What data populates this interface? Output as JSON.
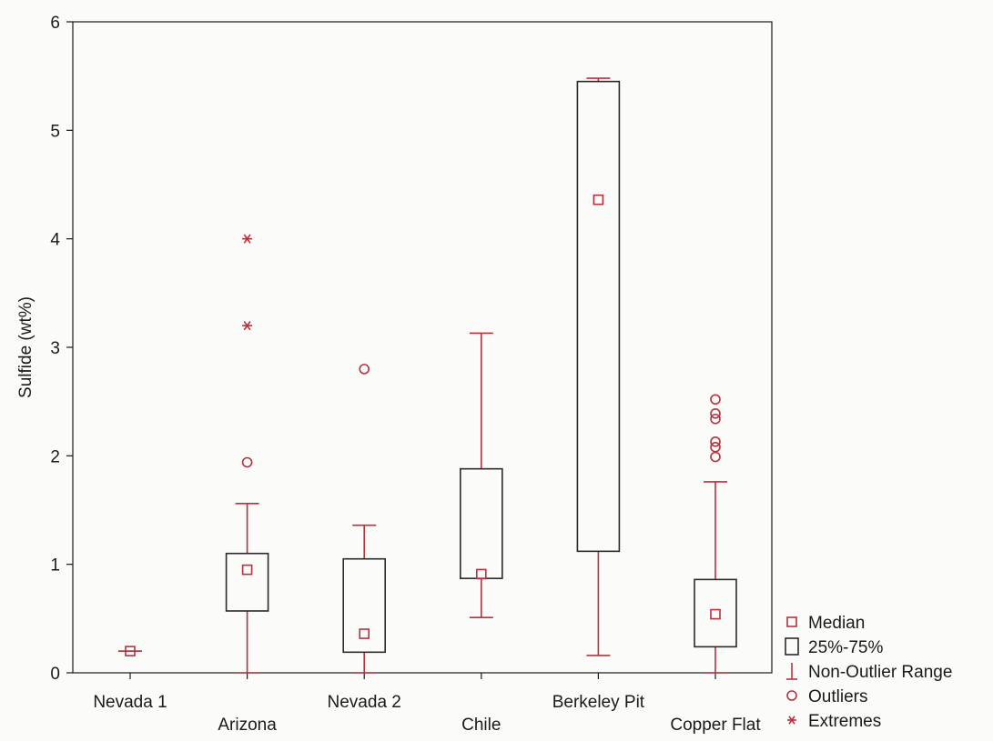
{
  "chart_data": {
    "type": "box",
    "ylabel": "Sulfide (wt%)",
    "ylim": [
      0,
      6
    ],
    "yticks": [
      0,
      1,
      2,
      3,
      4,
      5,
      6
    ],
    "grid": false,
    "legend_position": "bottom-right",
    "colors": {
      "marks": "#b5323e",
      "box": "#2a2a2a",
      "axes": "#1a1a1a"
    },
    "categories": [
      "Nevada 1",
      "Arizona",
      "Nevada 2",
      "Chile",
      "Berkeley Pit",
      "Copper Flat"
    ],
    "boxes": [
      {
        "category": "Nevada 1",
        "median": 0.2,
        "q1": 0.2,
        "q3": 0.2,
        "whisker_low": 0.2,
        "whisker_high": 0.2,
        "outliers": [],
        "extremes": []
      },
      {
        "category": "Arizona",
        "median": 0.95,
        "q1": 0.57,
        "q3": 1.1,
        "whisker_low": 0.0,
        "whisker_high": 1.56,
        "outliers": [
          1.94
        ],
        "extremes": [
          3.2,
          4.0
        ]
      },
      {
        "category": "Nevada 2",
        "median": 0.36,
        "q1": 0.19,
        "q3": 1.05,
        "whisker_low": 0.0,
        "whisker_high": 1.36,
        "outliers": [
          2.8
        ],
        "extremes": []
      },
      {
        "category": "Chile",
        "median": 0.91,
        "q1": 0.87,
        "q3": 1.88,
        "whisker_low": 0.51,
        "whisker_high": 3.13,
        "outliers": [],
        "extremes": []
      },
      {
        "category": "Berkeley Pit",
        "median": 4.36,
        "q1": 1.12,
        "q3": 5.45,
        "whisker_low": 0.16,
        "whisker_high": 5.48,
        "outliers": [],
        "extremes": []
      },
      {
        "category": "Copper Flat",
        "median": 0.54,
        "q1": 0.24,
        "q3": 0.86,
        "whisker_low": 0.0,
        "whisker_high": 1.76,
        "outliers": [
          1.99,
          2.08,
          2.13,
          2.34,
          2.39,
          2.52
        ],
        "extremes": []
      }
    ],
    "legend": [
      {
        "symbol": "median-square",
        "label": "Median"
      },
      {
        "symbol": "box",
        "label": "25%-75%"
      },
      {
        "symbol": "whisker",
        "label": "Non-Outlier Range"
      },
      {
        "symbol": "outlier-circle",
        "label": "Outliers"
      },
      {
        "symbol": "extreme-star",
        "label": "Extremes"
      }
    ]
  }
}
